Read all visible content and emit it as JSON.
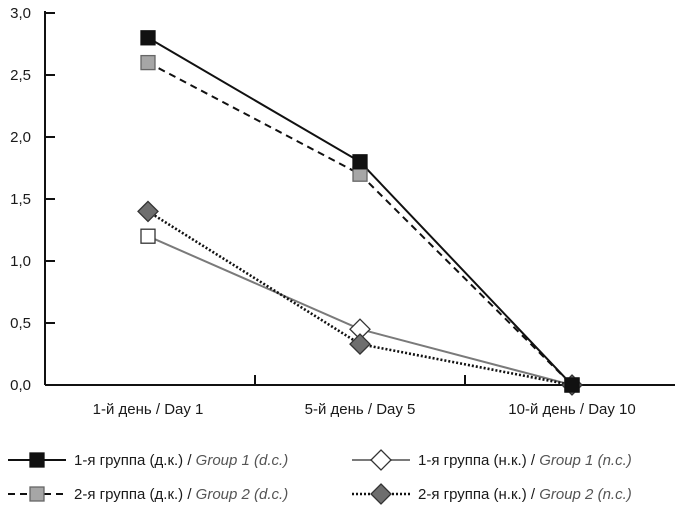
{
  "chart_data": {
    "type": "line",
    "title": "",
    "xlabel": "",
    "ylabel": "",
    "categories": [
      "1-й день / Day 1",
      "5-й день / Day 5",
      "10-й день / Day 10"
    ],
    "ylim": [
      0,
      3.0
    ],
    "yticks": [
      "0,0",
      "0,5",
      "1,0",
      "1,5",
      "2,0",
      "2,5",
      "3,0"
    ],
    "grid": false,
    "legend_position": "bottom",
    "series": [
      {
        "name_ru": "1-я группа (д.к.) / ",
        "name_en": "Group 1 (d.c.)",
        "values": [
          2.8,
          1.8,
          0.0
        ],
        "marker": "square",
        "marker_fill": "#111111",
        "marker_stroke": "#111111",
        "line_color": "#111111",
        "dash": "solid"
      },
      {
        "name_ru": "1-я группа (н.к.) / ",
        "name_en": "Group 1 (n.c.)",
        "values": [
          1.2,
          0.45,
          0.0
        ],
        "marker": "square",
        "marker_fill": "#ffffff",
        "marker_stroke": "#333333",
        "line_color": "#7a7a7a",
        "dash": "solid"
      },
      {
        "name_ru": "2-я группа (д.к.) / ",
        "name_en": "Group 2 (d.c.)",
        "values": [
          2.6,
          1.7,
          0.0
        ],
        "marker": "square",
        "marker_fill": "#a6a6a6",
        "marker_stroke": "#666666",
        "line_color": "#111111",
        "dash": "dashed"
      },
      {
        "name_ru": "2-я группа (н.к.) / ",
        "name_en": "Group 2 (n.c.)",
        "values": [
          1.4,
          0.33,
          0.0
        ],
        "marker": "diamond",
        "marker_fill": "#6e6e6e",
        "marker_stroke": "#333333",
        "line_color": "#111111",
        "dash": "dotted"
      }
    ],
    "legend_markers": {
      "0": "square",
      "1": "diamond",
      "2": "square",
      "3": "diamond"
    },
    "day5_markers": {
      "1": "diamond"
    }
  }
}
